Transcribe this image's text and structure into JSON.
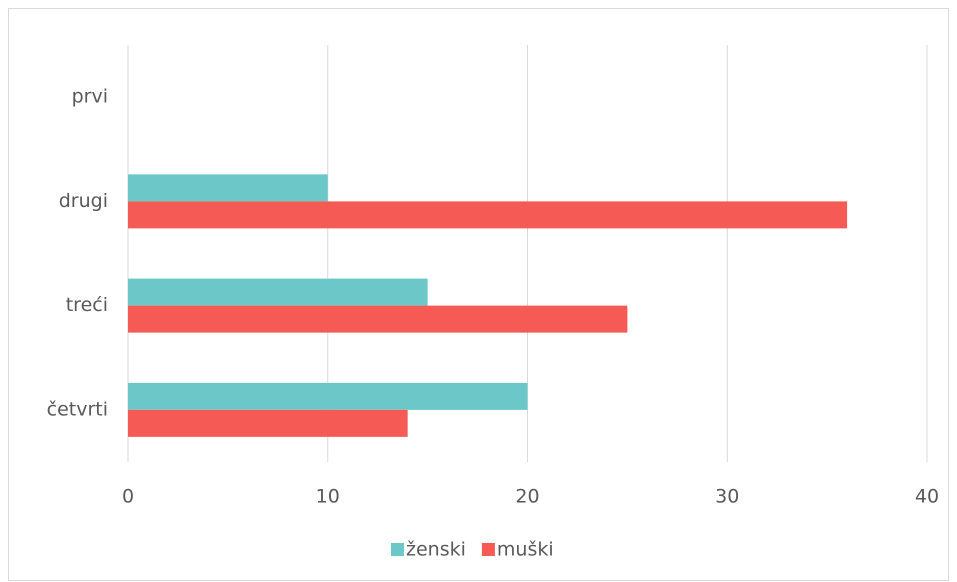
{
  "chart_data": {
    "type": "barh",
    "categories": [
      "prvi",
      "drugi",
      "treći",
      "četvrti"
    ],
    "series": [
      {
        "name": "ženski",
        "color": "#6cc8c8",
        "values": [
          null,
          10,
          15,
          20
        ]
      },
      {
        "name": "muški",
        "color": "#f55a55",
        "values": [
          null,
          36,
          25,
          14
        ]
      }
    ],
    "xlim": [
      0,
      40
    ],
    "xticks": [
      0,
      10,
      20,
      30,
      40
    ],
    "grid": true,
    "legend": "bottom"
  }
}
